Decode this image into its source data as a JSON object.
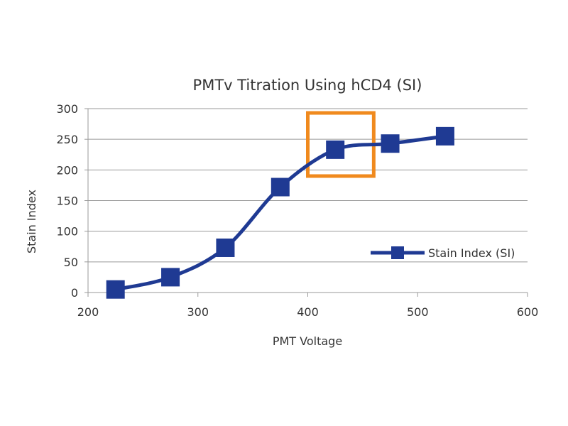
{
  "chart_data": {
    "type": "line",
    "title": "PMTv Titration Using hCD4 (SI)",
    "xlabel": "PMT Voltage",
    "ylabel": "Stain Index",
    "xlim": [
      200,
      600
    ],
    "ylim": [
      0,
      300
    ],
    "x_ticks": [
      200,
      300,
      400,
      500,
      600
    ],
    "y_ticks": [
      0,
      50,
      100,
      150,
      200,
      250,
      300
    ],
    "grid": "horizontal",
    "legend_position": "right",
    "series": [
      {
        "name": "Stain Index (SI)",
        "color": "#1f3a93",
        "marker": "square",
        "x": [
          225,
          275,
          325,
          375,
          425,
          475,
          525
        ],
        "y": [
          5,
          25,
          73,
          172,
          233,
          243,
          255
        ]
      }
    ],
    "highlight": {
      "color": "#f08a1e",
      "x_range": [
        400,
        460
      ],
      "y_range": [
        190,
        293
      ]
    }
  }
}
